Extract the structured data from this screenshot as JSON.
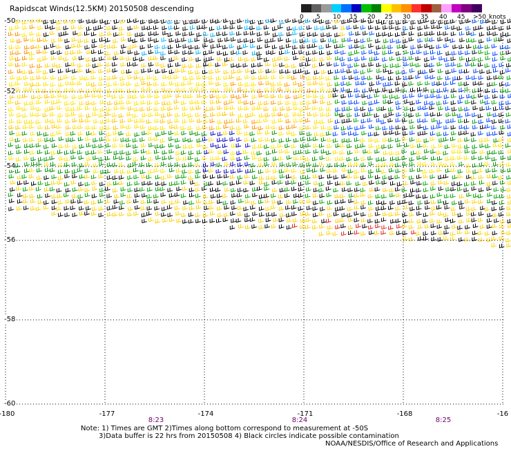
{
  "title": "Rapidscat Winds(12.5KM) 20150508 descending",
  "legend": {
    "labels": [
      "0",
      "5",
      "10",
      "15",
      "20",
      "25",
      "30",
      "35",
      "40",
      "45",
      ">50"
    ],
    "unit": "knots",
    "colors": [
      "#202020",
      "#606060",
      "#9a9a9a",
      "#00d0ff",
      "#0070ff",
      "#0000c0",
      "#00c000",
      "#008000",
      "#ffff00",
      "#ffc000",
      "#ff9000",
      "#ff3030",
      "#c00000",
      "#a06040",
      "#ffa0ff",
      "#c000c0",
      "#800080",
      "#400060"
    ]
  },
  "map": {
    "lat_labels": [
      "-50",
      "-52",
      "-54",
      "-56",
      "-58",
      "-60"
    ],
    "lon_labels": [
      "-180",
      "-177",
      "-174",
      "-171",
      "-168",
      "-16"
    ],
    "time_labels": [
      "8:23",
      "8:24",
      "8:25"
    ]
  },
  "notes": {
    "line1": "Note: 1) Times are GMT 2)Times along bottom correspond to measurement at -50S",
    "line2": "3)Data buffer is 22 hrs from 20150508 4) Black circles indicate possible contamination",
    "credit": "NOAA/NESDIS/Office of Research and Applications"
  }
}
